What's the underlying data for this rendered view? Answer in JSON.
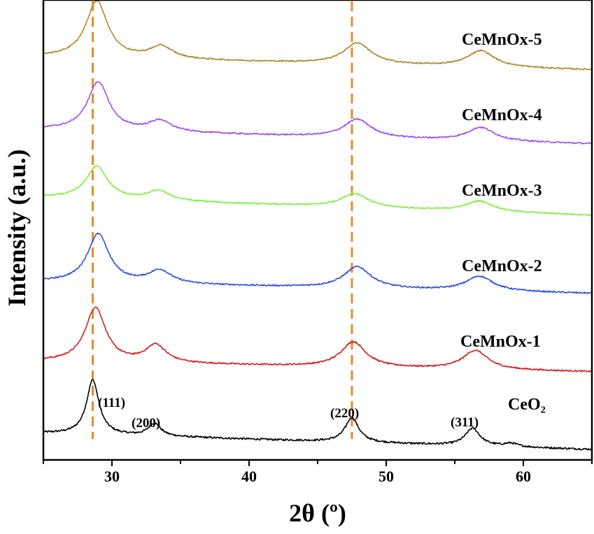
{
  "chart_data": {
    "type": "line",
    "title": "",
    "xlabel": "2θ (º)",
    "ylabel": "Intensity (a.u.)",
    "xlim": [
      25,
      65
    ],
    "x_ticks": [
      30,
      40,
      50,
      60
    ],
    "y_ticks_shown": false,
    "grid": false,
    "legend": "inline labels at right",
    "reference_lines": [
      {
        "x": 28.6,
        "color": "#e8892b",
        "style": "dashed"
      },
      {
        "x": 47.5,
        "color": "#e8892b",
        "style": "dashed"
      }
    ],
    "series": [
      {
        "name": "CeO₂",
        "color": "#000000",
        "baseline": [
          0.03,
          0.0
        ],
        "peaks": [
          {
            "x": 28.6,
            "height": 1.0,
            "width": 0.55
          },
          {
            "x": 33.1,
            "height": 0.23,
            "width": 0.55
          },
          {
            "x": 47.5,
            "height": 0.45,
            "width": 0.6
          },
          {
            "x": 56.3,
            "height": 0.32,
            "width": 0.65
          },
          {
            "x": 59.1,
            "height": 0.06,
            "width": 0.6
          }
        ]
      },
      {
        "name": "CeMnOx-1",
        "color": "#d42020",
        "baseline": [
          0.05,
          0.0
        ],
        "peaks": [
          {
            "x": 28.8,
            "height": 1.3,
            "width": 0.9
          },
          {
            "x": 33.2,
            "height": 0.42,
            "width": 0.9
          },
          {
            "x": 47.6,
            "height": 0.6,
            "width": 1.1
          },
          {
            "x": 56.5,
            "height": 0.45,
            "width": 1.1
          }
        ]
      },
      {
        "name": "CeMnOx-2",
        "color": "#2d4fe0",
        "baseline": [
          0.05,
          0.0
        ],
        "peaks": [
          {
            "x": 29.0,
            "height": 1.2,
            "width": 0.95
          },
          {
            "x": 33.5,
            "height": 0.32,
            "width": 1.0
          },
          {
            "x": 47.9,
            "height": 0.53,
            "width": 1.2
          },
          {
            "x": 56.8,
            "height": 0.36,
            "width": 1.2
          }
        ]
      },
      {
        "name": "CeMnOx-3",
        "color": "#80f040",
        "baseline": [
          0.03,
          0.0
        ],
        "peaks": [
          {
            "x": 28.9,
            "height": 0.85,
            "width": 0.95
          },
          {
            "x": 33.4,
            "height": 0.25,
            "width": 1.0
          },
          {
            "x": 47.7,
            "height": 0.36,
            "width": 1.2
          },
          {
            "x": 56.8,
            "height": 0.27,
            "width": 1.2
          }
        ]
      },
      {
        "name": "CeMnOx-4",
        "color": "#a050e8",
        "baseline": [
          0.05,
          0.0
        ],
        "peaks": [
          {
            "x": 29.0,
            "height": 1.2,
            "width": 0.95
          },
          {
            "x": 33.5,
            "height": 0.27,
            "width": 1.0
          },
          {
            "x": 47.9,
            "height": 0.45,
            "width": 1.2
          },
          {
            "x": 56.9,
            "height": 0.33,
            "width": 1.2
          }
        ]
      },
      {
        "name": "CeMnOx-5",
        "color": "#b08a30",
        "baseline": [
          0.05,
          0.0
        ],
        "peaks": [
          {
            "x": 28.9,
            "height": 1.4,
            "width": 0.95
          },
          {
            "x": 33.6,
            "height": 0.3,
            "width": 1.0
          },
          {
            "x": 47.9,
            "height": 0.52,
            "width": 1.2
          },
          {
            "x": 56.9,
            "height": 0.4,
            "width": 1.2
          }
        ]
      }
    ],
    "peak_labels": [
      {
        "text": "(111)"
      },
      {
        "text": "(200)"
      },
      {
        "text": "(220)"
      },
      {
        "text": "(311)"
      }
    ]
  }
}
